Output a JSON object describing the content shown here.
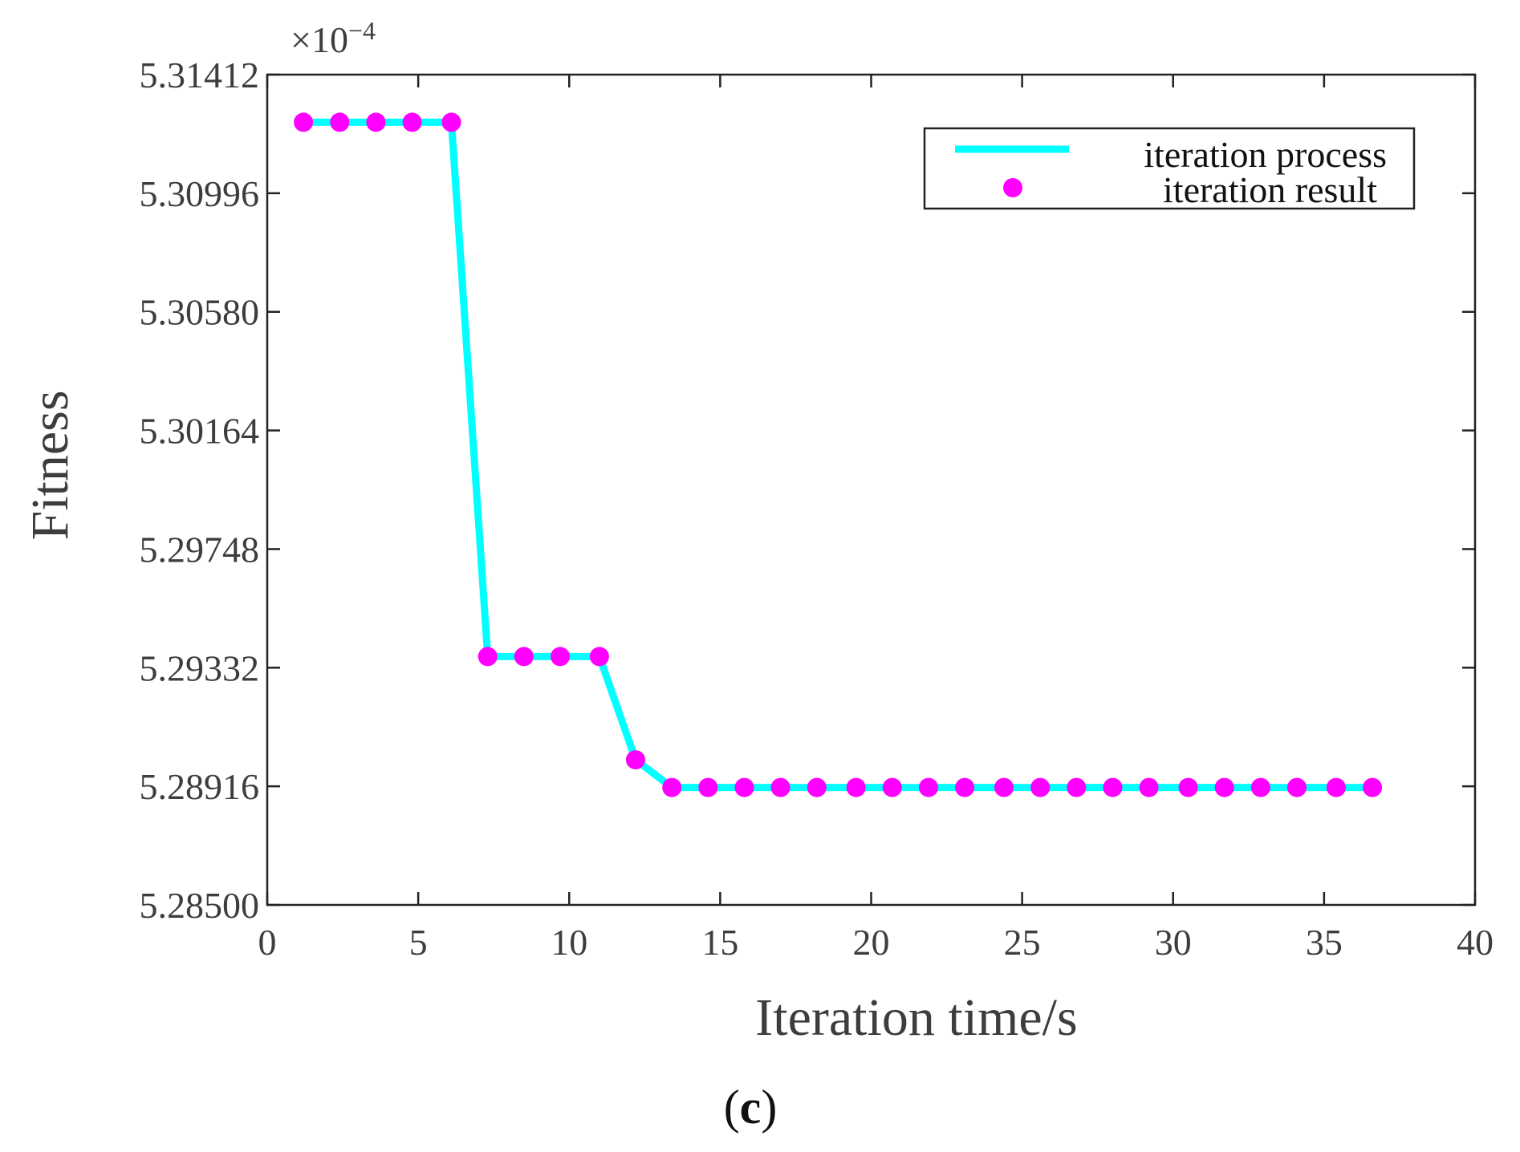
{
  "chart_data": {
    "type": "line",
    "title": "",
    "xlabel": "Iteration time/s",
    "ylabel": "Fitness",
    "y_exponent_base": "×10",
    "y_exponent_power": "−4",
    "xlim": [
      0,
      40
    ],
    "ylim": [
      5.285,
      5.31412
    ],
    "xticks": [
      0,
      5,
      10,
      15,
      20,
      25,
      30,
      35,
      40
    ],
    "xtick_labels": [
      "0",
      "5",
      "10",
      "15",
      "20",
      "25",
      "30",
      "35",
      "40"
    ],
    "yticks": [
      5.285,
      5.28916,
      5.29332,
      5.29748,
      5.30164,
      5.3058,
      5.30996,
      5.31412
    ],
    "ytick_labels": [
      "5.28500",
      "5.28916",
      "5.29332",
      "5.29748",
      "5.30164",
      "5.30580",
      "5.30996",
      "5.31412"
    ],
    "grid": false,
    "legend_position": "top-right",
    "series": [
      {
        "name": "iteration process",
        "style": "line",
        "color": "#00FFFF",
        "x": [
          1.2,
          2.4,
          3.6,
          4.8,
          6.1,
          7.3,
          8.5,
          9.7,
          11.0,
          12.2,
          13.4,
          14.6,
          15.8,
          17.0,
          18.2,
          19.5,
          20.7,
          21.9,
          23.1,
          24.4,
          25.6,
          26.8,
          28.0,
          29.2,
          30.5,
          31.7,
          32.9,
          34.1,
          35.4,
          36.6
        ],
        "y": [
          5.31245,
          5.31245,
          5.31245,
          5.31245,
          5.31245,
          5.29371,
          5.29371,
          5.29371,
          5.29371,
          5.29009,
          5.28912,
          5.28912,
          5.28912,
          5.28912,
          5.28912,
          5.28912,
          5.28912,
          5.28912,
          5.28912,
          5.28912,
          5.28912,
          5.28912,
          5.28912,
          5.28912,
          5.28912,
          5.28912,
          5.28912,
          5.28912,
          5.28912,
          5.28912
        ]
      },
      {
        "name": "iteration result",
        "style": "markers",
        "color": "#FF00FF",
        "x": [
          1.2,
          2.4,
          3.6,
          4.8,
          6.1,
          7.3,
          8.5,
          9.7,
          11.0,
          12.2,
          13.4,
          14.6,
          15.8,
          17.0,
          18.2,
          19.5,
          20.7,
          21.9,
          23.1,
          24.4,
          25.6,
          26.8,
          28.0,
          29.2,
          30.5,
          31.7,
          32.9,
          34.1,
          35.4,
          36.6
        ],
        "y": [
          5.31245,
          5.31245,
          5.31245,
          5.31245,
          5.31245,
          5.29371,
          5.29371,
          5.29371,
          5.29371,
          5.29009,
          5.28912,
          5.28912,
          5.28912,
          5.28912,
          5.28912,
          5.28912,
          5.28912,
          5.28912,
          5.28912,
          5.28912,
          5.28912,
          5.28912,
          5.28912,
          5.28912,
          5.28912,
          5.28912,
          5.28912,
          5.28912,
          5.28912,
          5.28912
        ]
      }
    ]
  },
  "caption": {
    "open": "(",
    "letter": "c",
    "close": ")"
  }
}
